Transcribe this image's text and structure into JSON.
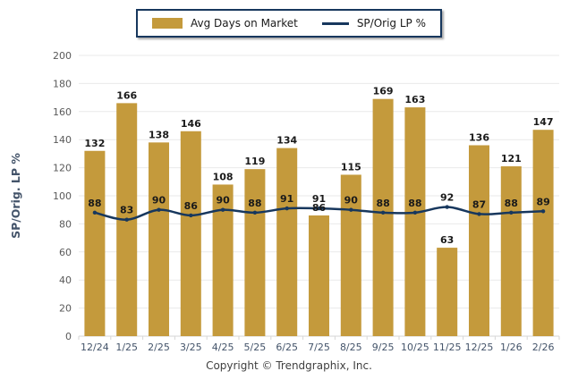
{
  "legend": {
    "items": [
      {
        "label": "Avg Days on Market",
        "swatch": "bar-swatch"
      },
      {
        "label": "SP/Orig LP %",
        "swatch": "line-swatch"
      }
    ]
  },
  "chart_data": {
    "type": "bar",
    "categories": [
      "12/24",
      "1/25",
      "2/25",
      "3/25",
      "4/25",
      "5/25",
      "6/25",
      "7/25",
      "8/25",
      "9/25",
      "10/25",
      "11/25",
      "12/25",
      "1/26",
      "2/26"
    ],
    "series": [
      {
        "name": "Avg Days on Market",
        "type": "bar",
        "color": "#C49A3C",
        "values": [
          132,
          166,
          138,
          146,
          108,
          119,
          134,
          86,
          115,
          169,
          163,
          63,
          136,
          121,
          147
        ]
      },
      {
        "name": "SP/Orig LP %",
        "type": "line",
        "color": "#17375D",
        "values": [
          88,
          83,
          90,
          86,
          90,
          88,
          91,
          91,
          90,
          88,
          88,
          92,
          87,
          88,
          89
        ]
      }
    ],
    "title": "",
    "xlabel": "",
    "ylabel": "SP/Orig. LP %",
    "ylim": [
      0,
      200
    ],
    "ytick_step": 20,
    "grid": true,
    "legend_position": "top-center",
    "value_labels": true
  },
  "footer": {
    "copyright": "Copyright © Trendgraphix, Inc."
  },
  "colors": {
    "bar": "#C49A3C",
    "line": "#17375D",
    "grid": "#E9E9E9",
    "axis": "#D6D6D6",
    "y_tick_label": "#595959",
    "x_tick_label": "#44546A",
    "value_label": "#1A1A1A",
    "axis_title": "#44546A"
  }
}
